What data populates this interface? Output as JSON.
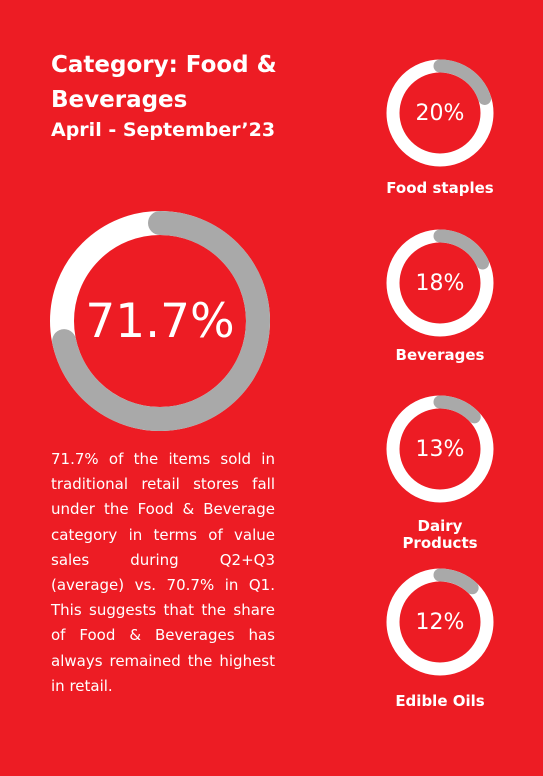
{
  "title": "Category: Food & Beverages",
  "subtitle": "April - September’23",
  "main_stat": {
    "label": "71.7%",
    "value": 71.7
  },
  "description": "71.7% of the items sold in traditional retail stores fall under the Food & Beverage category in terms of value sales during Q2+Q3 (average) vs. 70.7% in Q1. This suggests that the share of Food & Beverages has always remained the highest in retail.",
  "colors": {
    "background": "#ED1C24",
    "ring": "#FFFFFF",
    "fill": "#A9A9A9"
  },
  "chart_data": [
    {
      "type": "donut",
      "categories": [
        ""
      ],
      "values": [
        71.7
      ]
    },
    {
      "type": "donut",
      "categories": [
        "Food staples",
        "Beverages",
        "Dairy Products",
        "Edible Oils"
      ],
      "values": [
        20,
        18,
        13,
        12
      ],
      "labels": [
        "20%",
        "18%",
        "13%",
        "12%"
      ]
    }
  ]
}
